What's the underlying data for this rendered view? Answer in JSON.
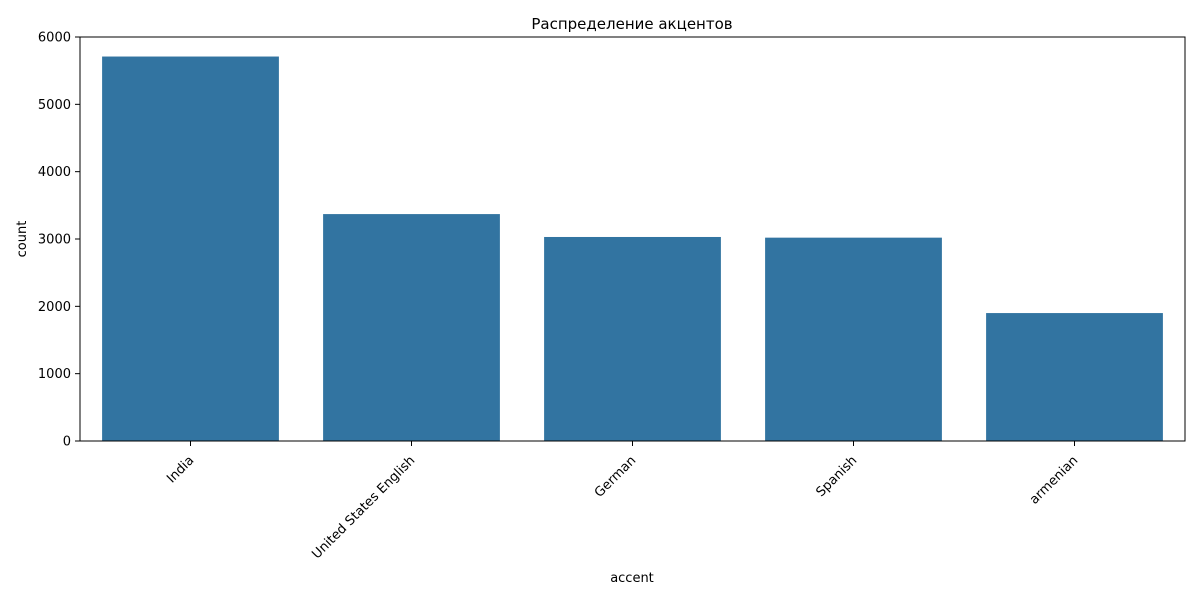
{
  "chart_data": {
    "type": "bar",
    "title": "Распределение акцентов",
    "xlabel": "accent",
    "ylabel": "count",
    "categories": [
      "India",
      "United States English",
      "German",
      "Spanish",
      "armenian"
    ],
    "values": [
      5710,
      3370,
      3030,
      3020,
      1900
    ],
    "ylim": [
      0,
      6000
    ],
    "yticks": [
      0,
      1000,
      2000,
      3000,
      4000,
      5000,
      6000
    ],
    "bar_color": "#3274a1",
    "grid": false,
    "legend": "none"
  }
}
